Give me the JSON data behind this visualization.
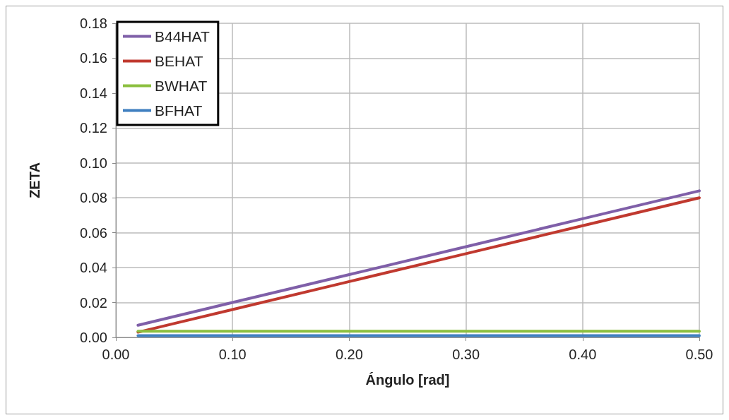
{
  "chart_data": {
    "type": "line",
    "xlabel": "Ángulo [rad]",
    "ylabel": "ZETA",
    "x": [
      0.019,
      0.1,
      0.2,
      0.3,
      0.4,
      0.5
    ],
    "series": [
      {
        "name": "B44HAT",
        "color": "#7f5fa8",
        "values": [
          0.007,
          0.02,
          0.036,
          0.052,
          0.068,
          0.084
        ]
      },
      {
        "name": "BEHAT",
        "color": "#c0392f",
        "values": [
          0.003,
          0.016,
          0.032,
          0.048,
          0.064,
          0.08
        ]
      },
      {
        "name": "BWHAT",
        "color": "#8cbf3f",
        "values": [
          0.0035,
          0.0035,
          0.0035,
          0.0035,
          0.0035,
          0.0035
        ]
      },
      {
        "name": "BFHAT",
        "color": "#3f7fc0",
        "values": [
          0.001,
          0.001,
          0.001,
          0.001,
          0.001,
          0.001
        ]
      }
    ],
    "xlim": [
      0,
      0.5
    ],
    "xticks": [
      {
        "value": 0,
        "label": "0.00"
      },
      {
        "value": 0.1,
        "label": "0.10"
      },
      {
        "value": 0.2,
        "label": "0.20"
      },
      {
        "value": 0.3,
        "label": "0.30"
      },
      {
        "value": 0.4,
        "label": "0.40"
      },
      {
        "value": 0.5,
        "label": "0.50"
      }
    ],
    "ylim": [
      0,
      0.18
    ],
    "yticks": [
      {
        "value": 0,
        "label": "0.00"
      },
      {
        "value": 0.02,
        "label": "0.02"
      },
      {
        "value": 0.04,
        "label": "0.04"
      },
      {
        "value": 0.06,
        "label": "0.06"
      },
      {
        "value": 0.08,
        "label": "0.08"
      },
      {
        "value": 0.1,
        "label": "0.10"
      },
      {
        "value": 0.12,
        "label": "0.12"
      },
      {
        "value": 0.14,
        "label": "0.14"
      },
      {
        "value": 0.16,
        "label": "0.16"
      },
      {
        "value": 0.18,
        "label": "0.18"
      }
    ],
    "grid": true,
    "legend": "top left",
    "marker": "none",
    "line_style": "solid"
  }
}
